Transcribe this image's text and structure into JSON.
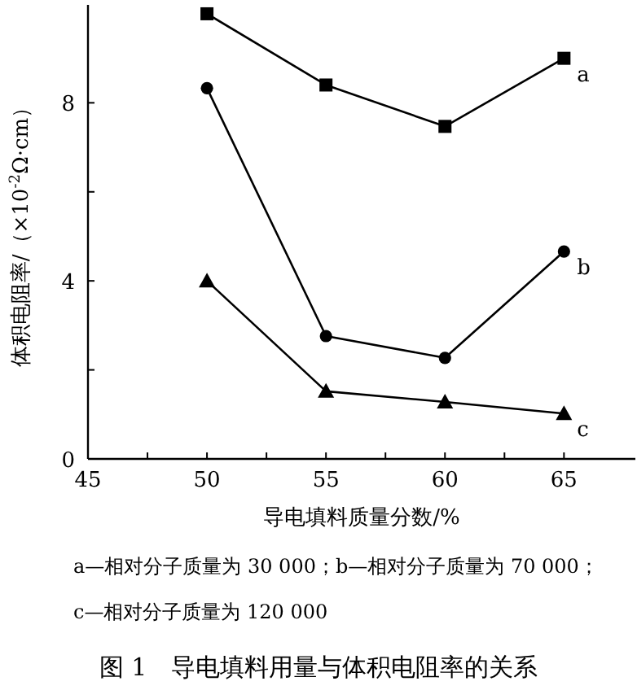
{
  "chart_data": {
    "type": "line",
    "xlabel": "导电填料质量分数/%",
    "ylabel": "体积电阻率/（×10$^{-2}$Ω·cm）",
    "x": [
      50,
      55,
      60,
      65
    ],
    "series": [
      {
        "name": "a",
        "color": "#000000",
        "marker": "square",
        "values": [
          10.0,
          8.4,
          7.47,
          9.0
        ]
      },
      {
        "name": "b",
        "color": "#000000",
        "marker": "circle",
        "values": [
          8.33,
          2.76,
          2.27,
          4.66
        ]
      },
      {
        "name": "c",
        "color": "#000000",
        "marker": "triangle",
        "values": [
          4.0,
          1.52,
          1.28,
          1.02
        ]
      }
    ],
    "xlim": [
      45,
      68
    ],
    "ylim": [
      0,
      10.2
    ],
    "xticks": [
      45,
      {
        "value": 47.5,
        "label": null
      },
      50,
      {
        "value": 52.5,
        "label": null
      },
      55,
      {
        "value": 57.5,
        "label": null
      },
      60,
      {
        "value": 62.5,
        "label": null
      },
      65
    ],
    "yticks": [
      0,
      {
        "value": 2,
        "label": null
      },
      4,
      {
        "value": 6,
        "label": null
      },
      8
    ],
    "annotations": [
      "a—相对分子质量为 30 000；b—相对分子质量为 70 000；",
      "c—相对分子质量为 120 000",
      "图 1　导电填料用量与体积电阻率的关系"
    ]
  }
}
